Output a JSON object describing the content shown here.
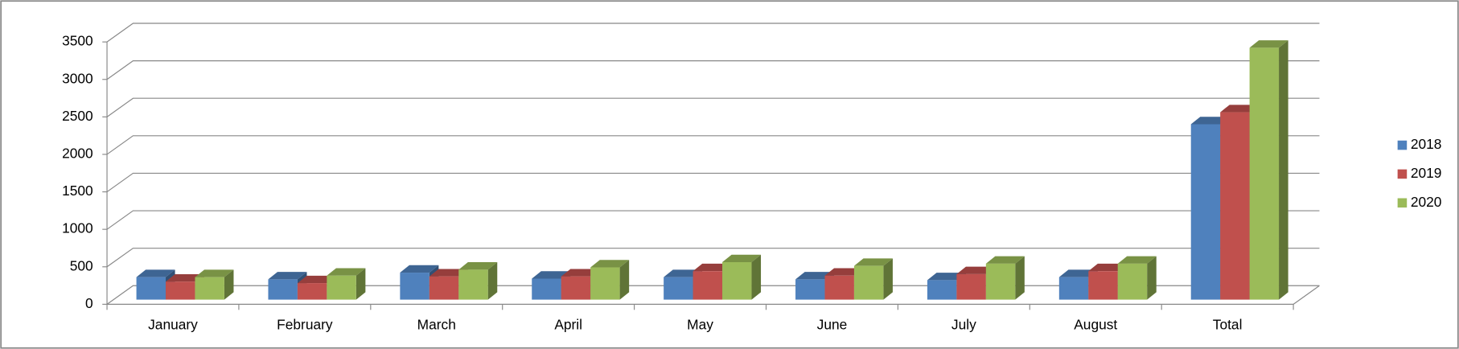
{
  "chart_data": {
    "type": "bar3d",
    "categories": [
      "January",
      "February",
      "March",
      "April",
      "May",
      "June",
      "July",
      "August",
      "Total"
    ],
    "series": [
      {
        "name": "2018",
        "color": "#4f81bd",
        "values": [
          300,
          270,
          360,
          280,
          300,
          270,
          260,
          300,
          2340
        ]
      },
      {
        "name": "2019",
        "color": "#c0504d",
        "values": [
          240,
          220,
          310,
          310,
          380,
          320,
          340,
          380,
          2500
        ]
      },
      {
        "name": "2020",
        "color": "#9bbb59",
        "values": [
          300,
          320,
          400,
          430,
          500,
          450,
          480,
          480,
          3360
        ]
      }
    ],
    "ylim": [
      0,
      3500
    ],
    "yticks": [
      0,
      500,
      1000,
      1500,
      2000,
      2500,
      3000,
      3500
    ],
    "grid": true,
    "legend": "right"
  }
}
